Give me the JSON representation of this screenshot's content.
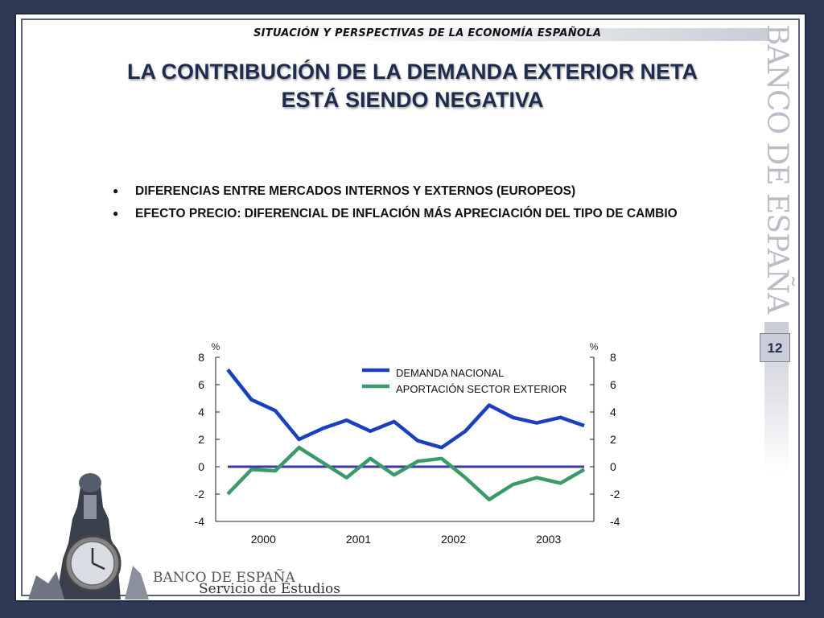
{
  "header": {
    "subtitle": "SITUACIÓN Y PERSPECTIVAS DE LA ECONOMÍA ESPAÑOLA"
  },
  "title": {
    "line1": "LA CONTRIBUCIÓN DE LA DEMANDA EXTERIOR NETA",
    "line2": "ESTÁ SIENDO NEGATIVA"
  },
  "bullets": [
    "DIFERENCIAS ENTRE MERCADOS INTERNOS Y EXTERNOS (EUROPEOS)",
    "EFECTO PRECIO: DIFERENCIAL DE INFLACIÓN MÁS APRECIACIÓN DEL TIPO DE CAMBIO"
  ],
  "side_brand": "BANCO DE ESPAÑA",
  "page_number": "12",
  "footer": {
    "org": "BANCO DE ESPAÑA",
    "dept": "Servicio de Estudios"
  },
  "colors": {
    "series1": "#1a3fbf",
    "series2": "#3a9a6a",
    "zero_line": "#3a3aa0",
    "title": "#1e2d4f"
  },
  "chart_data": {
    "type": "line",
    "y_unit_left": "%",
    "y_unit_right": "%",
    "ylim": [
      -4,
      8
    ],
    "yticks": [
      8,
      6,
      4,
      2,
      0,
      -2,
      -4
    ],
    "x_labels": [
      "2000",
      "2001",
      "2002",
      "2003"
    ],
    "x_periods": 16,
    "legend_position": "top-right",
    "grid": false,
    "series": [
      {
        "name": "DEMANDA NACIONAL",
        "color": "#1a3fbf",
        "values": [
          7.1,
          4.9,
          4.1,
          2.0,
          2.8,
          3.4,
          2.6,
          3.3,
          1.9,
          1.4,
          2.6,
          4.5,
          3.6,
          3.2,
          3.6,
          3.0
        ]
      },
      {
        "name": "APORTACIÓN SECTOR EXTERIOR",
        "color": "#3a9a6a",
        "values": [
          -2.0,
          -0.2,
          -0.3,
          1.4,
          0.3,
          -0.8,
          0.6,
          -0.6,
          0.4,
          0.6,
          -0.8,
          -2.4,
          -1.3,
          -0.8,
          -1.2,
          -0.2
        ]
      }
    ]
  }
}
